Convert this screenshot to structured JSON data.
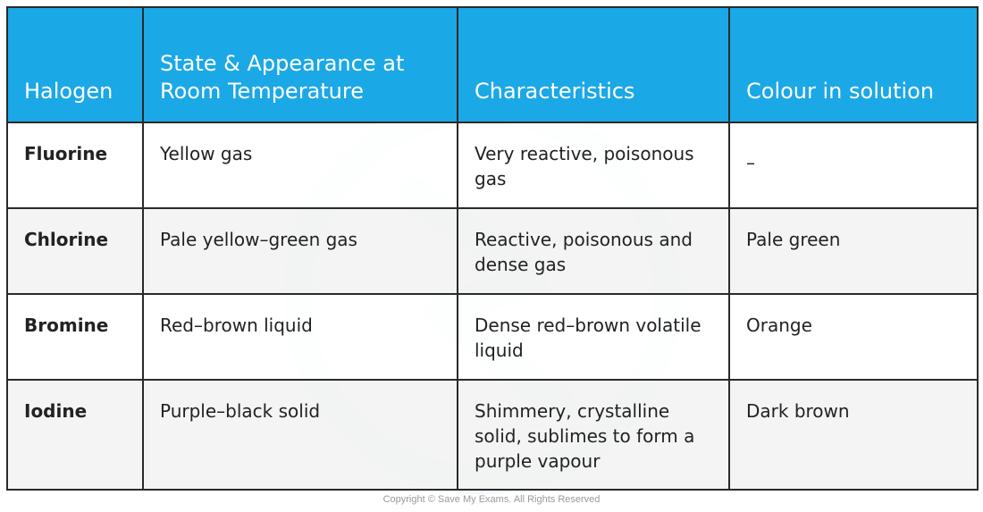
{
  "table": {
    "headers": [
      "Halogen",
      "State & Appearance at Room Temperature",
      "Characteristics",
      "Colour in solution"
    ],
    "rows": [
      {
        "halogen": "Fluorine",
        "state": "Yellow gas",
        "characteristics": "Very reactive, poisonous gas",
        "colour": "–"
      },
      {
        "halogen": "Chlorine",
        "state": "Pale yellow–green gas",
        "characteristics": "Reactive, poisonous and dense gas",
        "colour": "Pale green"
      },
      {
        "halogen": "Bromine",
        "state": "Red–brown liquid",
        "characteristics": "Dense red–brown volatile liquid",
        "colour": "Orange"
      },
      {
        "halogen": "Iodine",
        "state": "Purple–black solid",
        "characteristics": "Shimmery, crystalline solid, sublimes to form a purple vapour",
        "colour": "Dark brown"
      }
    ]
  },
  "footer": {
    "copyright": "Copyright © Save My Exams. All Rights Reserved"
  },
  "colors": {
    "header_background": "#1ba8e6",
    "header_text": "#ffffff",
    "border": "#2a2a2a",
    "alt_row": "#f2f2f2"
  }
}
